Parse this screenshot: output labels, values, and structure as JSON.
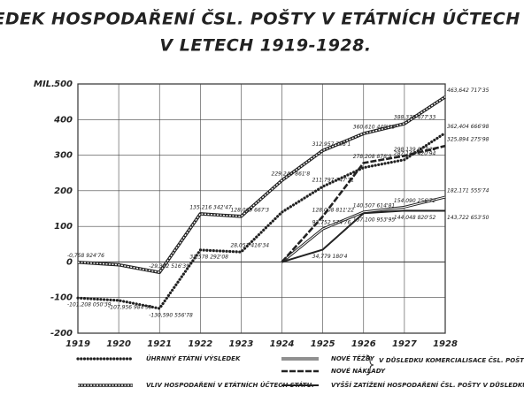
{
  "chart_data": {
    "type": "line",
    "title": [
      "VÝSLEDEK HOSPODAŘENÍ ČSL. POŠTY V ETÁTNÍCH ÚČTECH STÁTU",
      "V LETECH 1919-1928."
    ],
    "y_unit": "MIL.",
    "categories": [
      "1919",
      "1920",
      "1921",
      "1922",
      "1923",
      "1924",
      "1925",
      "1926",
      "1927",
      "1928"
    ],
    "ylim": [
      -200,
      500
    ],
    "yticks": [
      -200,
      -100,
      0,
      100,
      200,
      300,
      400,
      500
    ],
    "grid": true,
    "series": [
      {
        "name": "ÚHRNNÝ ETÁTNÍ VÝSLEDEK",
        "color": "#222",
        "style": "dotted",
        "values": [
          -101.20805039,
          -107.95698459,
          -130.59055678,
          33.57829208,
          28.05141634,
          140,
          211.79774771,
          265,
          287.14042094,
          362.40466698
        ],
        "value_labels": [
          "-101,208 050'39",
          "-107,956 984'59",
          "-130,590 556'78",
          "33,578 292'08",
          "28,051 416'34",
          null,
          "211,797 747'71",
          null,
          "287,140 420'94",
          "362,404 666'98"
        ]
      },
      {
        "name": "VLIV HOSPODAŘENÍ V ETÁTNÍCH ÚČTECH STÁTU.",
        "color": "#222",
        "style": "double",
        "values": [
          -0.75892476,
          -8,
          -29.35251639,
          135.21634247,
          128.0696673,
          229.2448618,
          312.9577981,
          360.61044918,
          388.37847733,
          463.64271735
        ],
        "value_labels": [
          "-0,758 924'76",
          null,
          "-29,352 516'39",
          "135,216 342'47",
          "128,069 667'3",
          "229,244 861'8",
          "312,957 798'1",
          "360,610 449'18",
          "388,378 477'33",
          "463,642 717'35"
        ]
      },
      {
        "name": "NOVÉ TĚŽBY",
        "color": "#222",
        "style": "thin-double",
        "values": [
          null,
          null,
          null,
          null,
          null,
          0,
          92.75257476,
          140.50761481,
          154.09025672,
          182.17155574
        ],
        "value_labels": [
          null,
          null,
          null,
          null,
          null,
          null,
          "92,752 574'76",
          "140,507 614'81",
          "154,090 256'72",
          "182,171 555'74"
        ]
      },
      {
        "name": "NOVÉ NÁKLADY",
        "color": "#222",
        "style": "dashed",
        "values": [
          null,
          null,
          null,
          null,
          null,
          0,
          128.00881122,
          278.2088789,
          298.13907724,
          325.89427598
        ],
        "value_labels": [
          null,
          null,
          null,
          null,
          null,
          null,
          "128,008 811'22",
          "278,208 878'9",
          "298,139 077'24",
          "325,894 275'98"
        ]
      },
      {
        "name": "VYŠŠÍ ZATÍŽENÍ HOSPODAŘENÍ ČSL. POŠTY V DŮSLEDKU KOMERCIALISACE.",
        "color": "#222",
        "style": "solid",
        "values": [
          null,
          null,
          null,
          null,
          null,
          0,
          34.7791804,
          137.10095395,
          144.04882052,
          143.7226535
        ],
        "value_labels": [
          null,
          null,
          null,
          null,
          null,
          null,
          "34,779 180'4",
          "137,100 953'95",
          "144,048 820'52",
          "143,722 653'50"
        ]
      }
    ],
    "legend_note": "V DŮSLEDKU KOMERCIALISACE ČSL. POŠTY."
  }
}
